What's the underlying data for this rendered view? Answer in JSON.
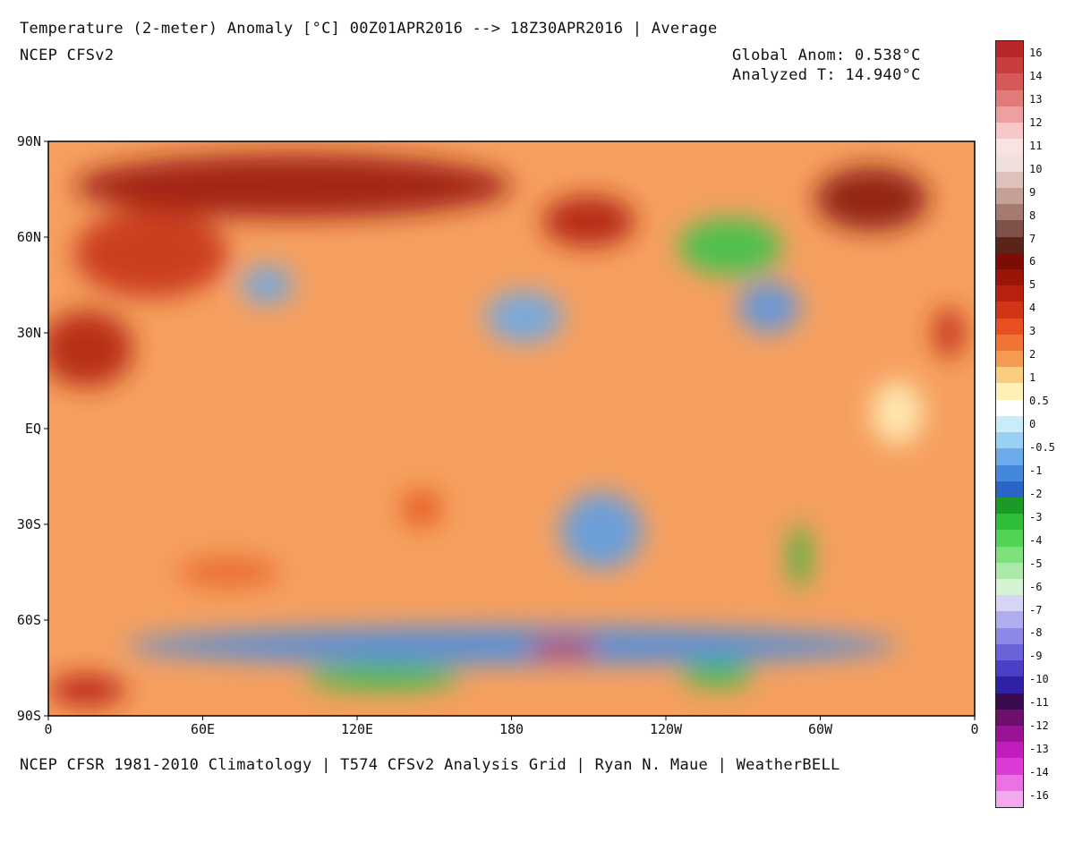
{
  "header": {
    "title": "Temperature (2-meter) Anomaly  [°C] 00Z01APR2016 --> 18Z30APR2016 | Average",
    "model": "NCEP CFSv2",
    "global_anom": "Global Anom: 0.538°C",
    "analyzed_t": "Analyzed T: 14.940°C"
  },
  "footer": {
    "credits": "NCEP CFSR 1981-2010 Climatology | T574 CFSv2 Analysis Grid | Ryan N. Maue | WeatherBELL"
  },
  "axes": {
    "lat_labels": [
      {
        "text": "90N",
        "lat": 90
      },
      {
        "text": "60N",
        "lat": 60
      },
      {
        "text": "30N",
        "lat": 30
      },
      {
        "text": "EQ",
        "lat": 0
      },
      {
        "text": "30S",
        "lat": -30
      },
      {
        "text": "60S",
        "lat": -60
      },
      {
        "text": "90S",
        "lat": -90
      }
    ],
    "lon_labels": [
      {
        "text": "0",
        "lon": 0
      },
      {
        "text": "60E",
        "lon": 60
      },
      {
        "text": "120E",
        "lon": 120
      },
      {
        "text": "180",
        "lon": 180
      },
      {
        "text": "120W",
        "lon": 240
      },
      {
        "text": "60W",
        "lon": 300
      },
      {
        "text": "0",
        "lon": 360
      }
    ]
  },
  "colorbar": {
    "labels": [
      "16",
      "14",
      "13",
      "12",
      "11",
      "10",
      "9",
      "8",
      "7",
      "6",
      "5",
      "4",
      "3",
      "2",
      "1",
      "0.5",
      "0",
      "-0.5",
      "-1",
      "-2",
      "-3",
      "-4",
      "-5",
      "-6",
      "-7",
      "-8",
      "-9",
      "-10",
      "-11",
      "-12",
      "-13",
      "-14",
      "-16"
    ],
    "colors": [
      "#b82828",
      "#c83c3c",
      "#d65858",
      "#e27a7a",
      "#eea0a0",
      "#f6c8c8",
      "#f8e2e2",
      "#efe0dc",
      "#dcc2ba",
      "#c4a096",
      "#a67a70",
      "#7e5248",
      "#5a2418",
      "#7e0c06",
      "#9a1408",
      "#b82010",
      "#d23416",
      "#e85022",
      "#f27434",
      "#f69a52",
      "#facc80",
      "#fff0b8",
      "#ffffff",
      "#c8ecfa",
      "#9ad0f4",
      "#6cacea",
      "#4488de",
      "#2a64c8",
      "#1c9a28",
      "#2ebe38",
      "#50d454",
      "#7ee27c",
      "#ace8a8",
      "#d6f2d4",
      "#d6d6f4",
      "#b0aeee",
      "#8c88e6",
      "#6a64da",
      "#4a40c8",
      "#3020a6",
      "#3a0a4e",
      "#6e0e6e",
      "#9a1296",
      "#c21cbe",
      "#de3ad6",
      "#ec72e4",
      "#f4a8ee"
    ]
  },
  "map_regions": [
    {
      "name": "arctic-siberia-warm",
      "lon": 95,
      "lat": 76,
      "rlon": 85,
      "rlat": 10,
      "color": "#9a1a0c"
    },
    {
      "name": "europe-warm",
      "lon": 40,
      "lat": 55,
      "rlon": 30,
      "rlat": 14,
      "color": "#c83414"
    },
    {
      "name": "north-africa-warm",
      "lon": 15,
      "lat": 25,
      "rlon": 18,
      "rlat": 12,
      "color": "#b22410"
    },
    {
      "name": "alaska-warm",
      "lon": 210,
      "lat": 65,
      "rlon": 18,
      "rlat": 8,
      "color": "#b01e0c"
    },
    {
      "name": "greenland-warm",
      "lon": 320,
      "lat": 72,
      "rlon": 22,
      "rlat": 10,
      "color": "#8a1408"
    },
    {
      "name": "canada-green",
      "lon": 265,
      "lat": 57,
      "rlon": 20,
      "rlat": 9,
      "color": "#3cc44a"
    },
    {
      "name": "east-us-blue",
      "lon": 280,
      "lat": 38,
      "rlon": 12,
      "rlat": 8,
      "color": "#5a96e2"
    },
    {
      "name": "north-pacific-blue",
      "lon": 185,
      "lat": 35,
      "rlon": 15,
      "rlat": 8,
      "color": "#6aaaea"
    },
    {
      "name": "south-pacific-blue",
      "lon": 215,
      "lat": -32,
      "rlon": 16,
      "rlat": 12,
      "color": "#5c9ee6"
    },
    {
      "name": "southern-ocean-blue",
      "lon": 180,
      "lat": -68,
      "rlon": 150,
      "rlat": 6,
      "color": "#4a8ee0"
    },
    {
      "name": "antarctica-green",
      "lon": 130,
      "lat": -78,
      "rlon": 30,
      "rlat": 4,
      "color": "#34be44"
    },
    {
      "name": "antarctica-green-west",
      "lon": 260,
      "lat": -77,
      "rlon": 14,
      "rlat": 4,
      "color": "#34be44"
    },
    {
      "name": "ross-sea-warm",
      "lon": 200,
      "lat": -69,
      "rlon": 14,
      "rlat": 3,
      "color": "#c82a10"
    },
    {
      "name": "antarctic-coast-warm",
      "lon": 15,
      "lat": -82,
      "rlon": 15,
      "rlat": 5,
      "color": "#b82010"
    },
    {
      "name": "australia-warm",
      "lon": 145,
      "lat": -25,
      "rlon": 8,
      "rlat": 6,
      "color": "#e45a20"
    },
    {
      "name": "south-america-green",
      "lon": 292,
      "lat": -40,
      "rlon": 4,
      "rlat": 10,
      "color": "#2eb83c"
    },
    {
      "name": "iberia-africa-west-warm",
      "lon": 350,
      "lat": 30,
      "rlon": 6,
      "rlat": 8,
      "color": "#c02a12"
    },
    {
      "name": "central-asia-blue",
      "lon": 85,
      "lat": 45,
      "rlon": 10,
      "rlat": 6,
      "color": "#6aa8e8"
    },
    {
      "name": "tropical-atlantic-cool",
      "lon": 330,
      "lat": 5,
      "rlon": 10,
      "rlat": 10,
      "color": "#fff0b8"
    },
    {
      "name": "southern-indian-warm",
      "lon": 70,
      "lat": -45,
      "rlon": 20,
      "rlat": 5,
      "color": "#e86a2c"
    }
  ]
}
